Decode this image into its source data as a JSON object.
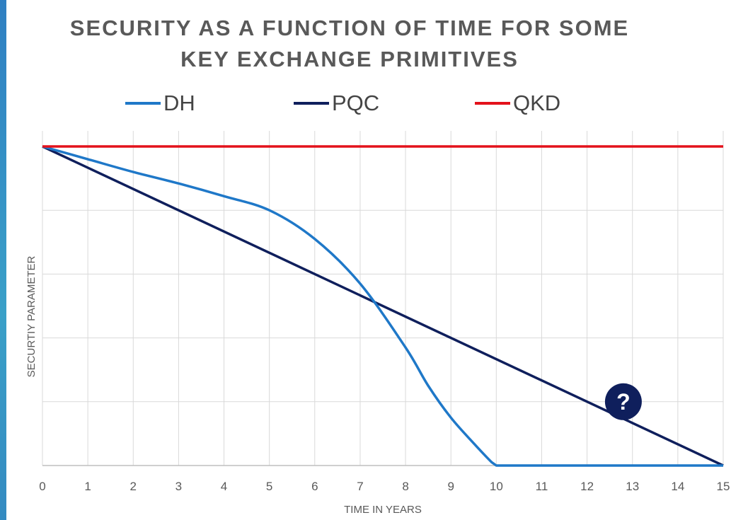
{
  "chart_data": {
    "type": "line",
    "title_lines": [
      "SECURITY AS A FUNCTION OF TIME FOR SOME",
      "KEY EXCHANGE PRIMITIVES"
    ],
    "xlabel": "TIME IN YEARS",
    "ylabel": "SECURTIY PARAMETER",
    "x_ticks": [
      "0",
      "1",
      "2",
      "3",
      "4",
      "5",
      "6",
      "7",
      "8",
      "9",
      "10",
      "11",
      "12",
      "13",
      "14",
      "15"
    ],
    "xlim": [
      0,
      15
    ],
    "ylim": [
      0,
      5
    ],
    "grid": true,
    "legend_position": "top",
    "series": [
      {
        "name": "DH",
        "color": "#1f78c8",
        "x": [
          0,
          1,
          2,
          3,
          4,
          5,
          6,
          7,
          8,
          8.5,
          9,
          9.5,
          9.9,
          10,
          11,
          12,
          13,
          14,
          15
        ],
        "y": [
          5,
          4.8,
          4.6,
          4.42,
          4.22,
          4.0,
          3.55,
          2.85,
          1.85,
          1.25,
          0.75,
          0.35,
          0.05,
          0,
          0,
          0,
          0,
          0,
          0
        ]
      },
      {
        "name": "PQC",
        "color": "#0f1f5c",
        "x": [
          0,
          15
        ],
        "y": [
          5,
          0
        ]
      },
      {
        "name": "QKD",
        "color": "#e3121b",
        "x": [
          0,
          15
        ],
        "y": [
          5,
          5
        ]
      }
    ],
    "annotation": {
      "text": "?",
      "x": 12.8,
      "y": 1.0
    }
  }
}
